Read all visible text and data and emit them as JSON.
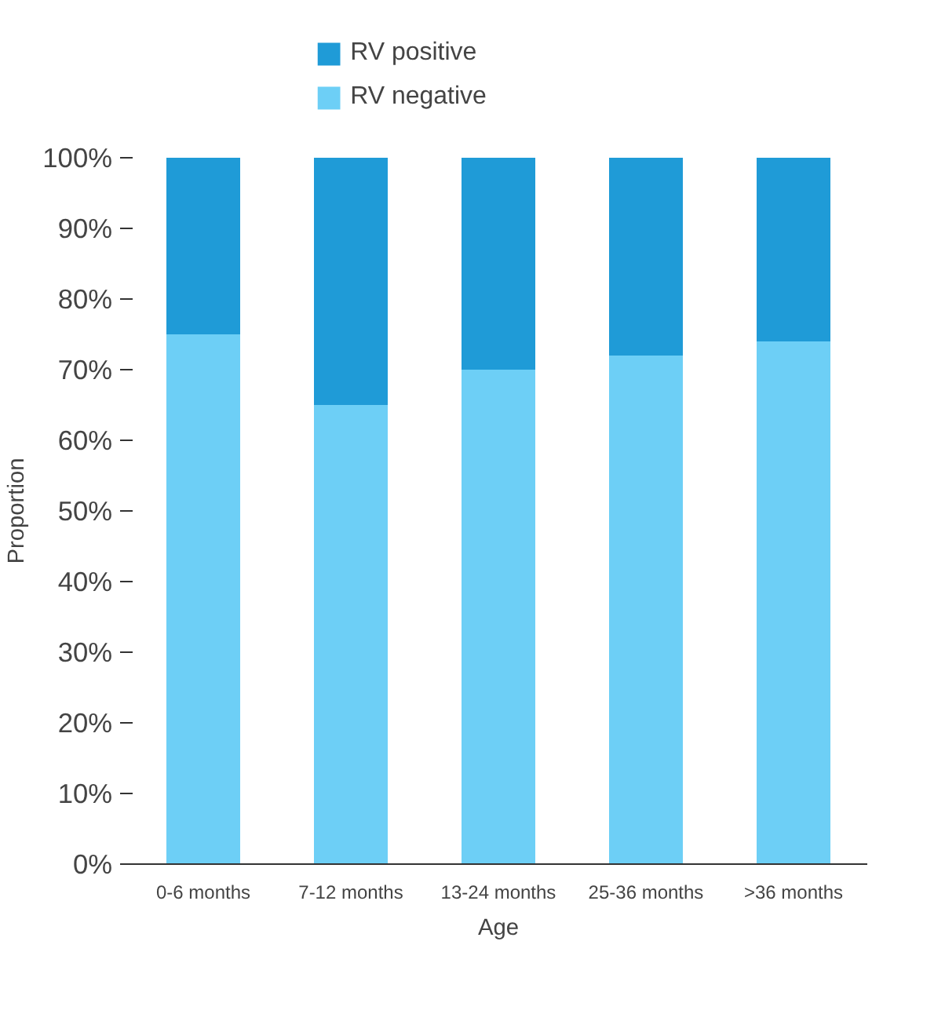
{
  "chart_data": {
    "type": "bar",
    "stacked": true,
    "xlabel": "Age",
    "ylabel": "Proportion",
    "categories": [
      "0-6 months",
      "7-12 months",
      "13-24 months",
      "25-36 months",
      ">36 months"
    ],
    "series": [
      {
        "name": "RV negative",
        "color": "#6dcff6",
        "values": [
          75,
          65,
          70,
          72,
          74
        ]
      },
      {
        "name": "RV positive",
        "color": "#1f9bd7",
        "values": [
          25,
          35,
          30,
          28,
          26
        ]
      }
    ],
    "ylim": [
      0,
      100
    ],
    "yticks": [
      {
        "value": 0,
        "label": "0%"
      },
      {
        "value": 10,
        "label": "10%"
      },
      {
        "value": 20,
        "label": "20%"
      },
      {
        "value": 30,
        "label": "30%"
      },
      {
        "value": 40,
        "label": "40%"
      },
      {
        "value": 50,
        "label": "50%"
      },
      {
        "value": 60,
        "label": "60%"
      },
      {
        "value": 70,
        "label": "70%"
      },
      {
        "value": 80,
        "label": "80%"
      },
      {
        "value": 90,
        "label": "90%"
      },
      {
        "value": 100,
        "label": "100%"
      }
    ],
    "grid": false,
    "legend": "top"
  }
}
